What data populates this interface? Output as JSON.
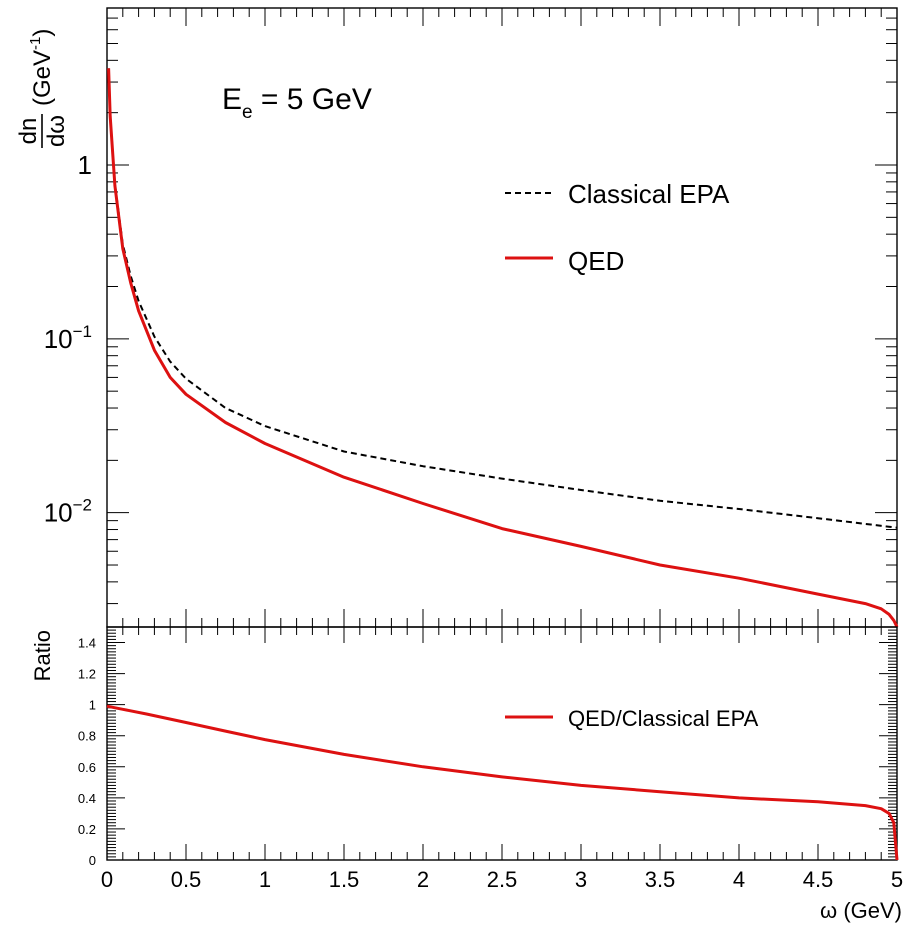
{
  "chart_data": [
    {
      "type": "line",
      "annotation": {
        "base": "E",
        "sub": "e",
        "rest": " = 5 GeV"
      },
      "ylabel": {
        "num": "dn",
        "den": "dω",
        "unit_prefix": "(GeV",
        "unit_sup": "-1",
        "unit_suffix": ")"
      },
      "yscale": "log",
      "ylim": [
        0.0022,
        8
      ],
      "xlim": [
        0,
        5
      ],
      "y_ticks": [
        {
          "value": 1,
          "label": "1",
          "exp": ""
        },
        {
          "value": 0.1,
          "label": "10",
          "exp": "−1"
        },
        {
          "value": 0.01,
          "label": "10",
          "exp": "−2"
        }
      ],
      "legend": {
        "placement": "top-right"
      },
      "series": [
        {
          "name": "Classical EPA",
          "color": "#000000",
          "style": "dashed",
          "x": [
            0.01,
            0.02,
            0.05,
            0.1,
            0.15,
            0.2,
            0.3,
            0.4,
            0.5,
            0.75,
            1.0,
            1.5,
            2.0,
            2.5,
            3.0,
            3.5,
            4.0,
            4.5,
            5.0
          ],
          "y": [
            3.6,
            1.95,
            0.78,
            0.35,
            0.23,
            0.165,
            0.103,
            0.074,
            0.059,
            0.04,
            0.0315,
            0.0225,
            0.0185,
            0.0157,
            0.0135,
            0.0117,
            0.0105,
            0.0093,
            0.0082
          ]
        },
        {
          "name": "QED",
          "color": "#dd1111",
          "style": "solid",
          "x": [
            0.01,
            0.02,
            0.05,
            0.1,
            0.15,
            0.2,
            0.3,
            0.4,
            0.5,
            0.75,
            1.0,
            1.5,
            2.0,
            2.5,
            3.0,
            3.5,
            4.0,
            4.5,
            4.8,
            4.9,
            4.95,
            4.98,
            5.0
          ],
          "y": [
            3.6,
            1.9,
            0.76,
            0.33,
            0.21,
            0.145,
            0.086,
            0.06,
            0.048,
            0.033,
            0.025,
            0.016,
            0.0113,
            0.0081,
            0.0064,
            0.005,
            0.0042,
            0.0034,
            0.003,
            0.0028,
            0.0026,
            0.0024,
            0.0022
          ]
        }
      ]
    },
    {
      "type": "line",
      "ylabel": "Ratio",
      "xlabel": "ω (GeV)",
      "xlim": [
        0,
        5
      ],
      "ylim": [
        0,
        1.5
      ],
      "x_ticks": [
        "0",
        "0.5",
        "1",
        "1.5",
        "2",
        "2.5",
        "3",
        "3.5",
        "4",
        "4.5",
        "5"
      ],
      "y_ticks": [
        "0",
        "0.2",
        "0.4",
        "0.6",
        "0.8",
        "1",
        "1.2",
        "1.4"
      ],
      "legend": {
        "placement": "right"
      },
      "series": [
        {
          "name": "QED/Classical EPA",
          "color": "#dd1111",
          "style": "solid",
          "x": [
            0.0,
            0.1,
            0.25,
            0.5,
            0.75,
            1.0,
            1.5,
            2.0,
            2.5,
            3.0,
            3.5,
            4.0,
            4.5,
            4.8,
            4.9,
            4.95,
            4.98,
            5.0
          ],
          "y": [
            0.99,
            0.97,
            0.94,
            0.885,
            0.83,
            0.775,
            0.68,
            0.6,
            0.535,
            0.48,
            0.44,
            0.4,
            0.375,
            0.35,
            0.33,
            0.3,
            0.24,
            0.0
          ]
        }
      ]
    }
  ]
}
